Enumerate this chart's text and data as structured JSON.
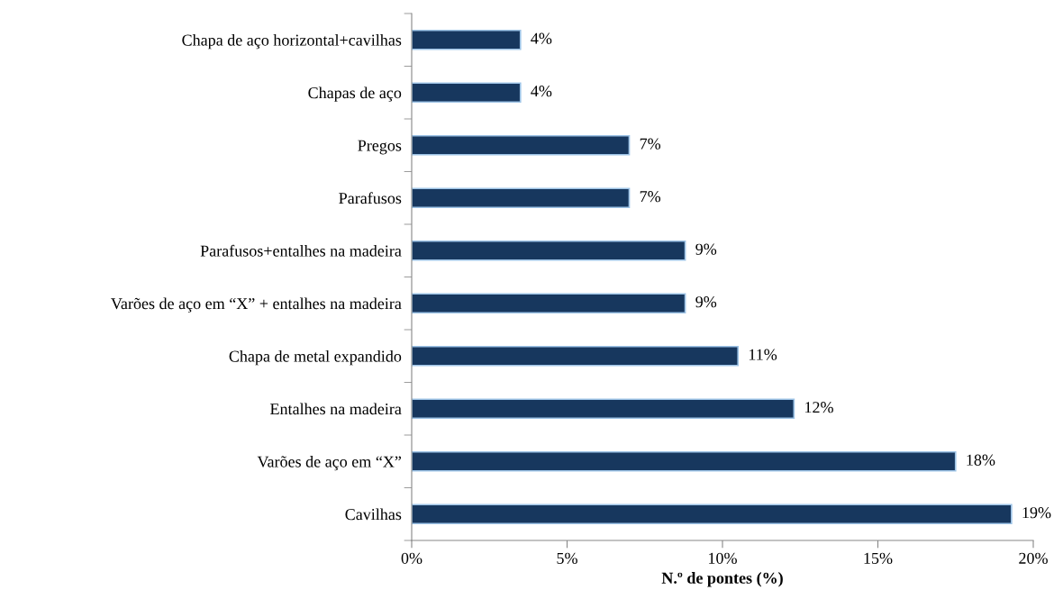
{
  "chart_data": {
    "type": "bar",
    "orientation": "horizontal",
    "xlabel": "N.º de pontes (%)",
    "categories": [
      "Chapa de aço horizontal+cavilhas",
      "Chapas de aço",
      "Pregos",
      "Parafusos",
      "Parafusos+entalhes na madeira",
      "Varões de aço em “X” + entalhes na madeira",
      "Chapa de metal expandido",
      "Entalhes na madeira",
      "Varões de aço em “X”",
      "Cavilhas"
    ],
    "values": [
      3.5,
      3.5,
      7.0,
      7.0,
      8.8,
      8.8,
      10.5,
      12.3,
      17.5,
      19.3
    ],
    "value_labels": [
      "4%",
      "4%",
      "7%",
      "7%",
      "9%",
      "9%",
      "11%",
      "12%",
      "18%",
      "19%"
    ],
    "color": "#17375e",
    "xlim": [
      0,
      20
    ],
    "xticks": [
      {
        "value": 0,
        "label": "0%"
      },
      {
        "value": 5,
        "label": "5%"
      },
      {
        "value": 10,
        "label": "10%"
      },
      {
        "value": 15,
        "label": "15%"
      },
      {
        "value": 20,
        "label": "20%"
      }
    ],
    "grid": false,
    "legend": false
  }
}
